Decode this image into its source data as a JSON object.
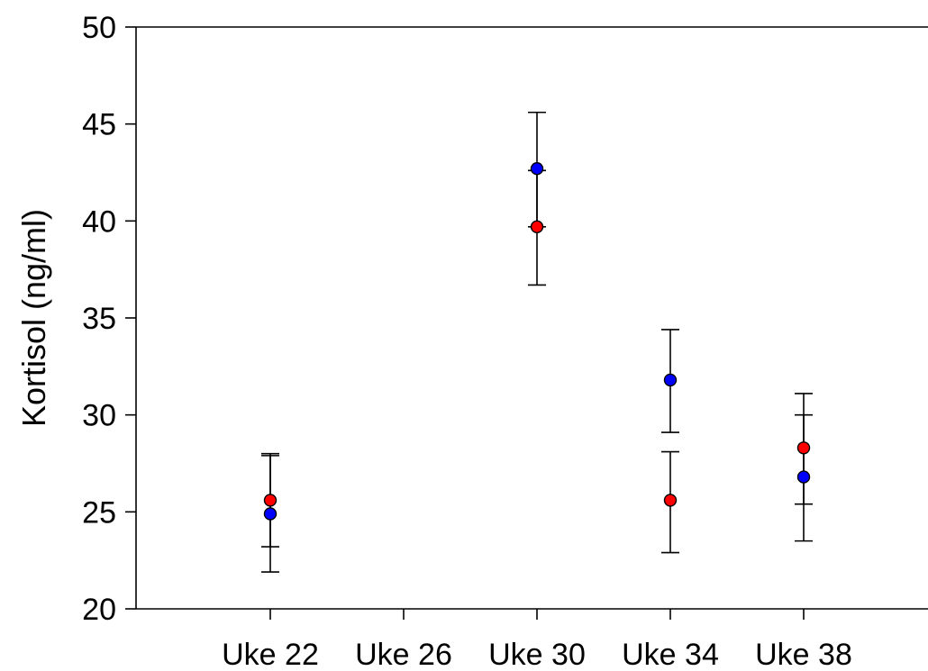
{
  "chart_data": {
    "type": "scatter",
    "title": "",
    "xlabel": "",
    "ylabel": "Kortisol (ng/ml)",
    "ylim": [
      20,
      50
    ],
    "yticks": [
      20,
      25,
      30,
      35,
      40,
      45,
      50
    ],
    "categories": [
      "Uke 22",
      "Uke 26",
      "Uke 30",
      "Uke 34",
      "Uke 38"
    ],
    "grid": false,
    "legend": "none",
    "series": [
      {
        "color": "#ff0000",
        "points": [
          {
            "category": "Uke 22",
            "y": 25.6,
            "err_low": 21.9,
            "err_high": 27.9
          },
          {
            "category": "Uke 30",
            "y": 39.7,
            "err_low": 36.7,
            "err_high": 42.6
          },
          {
            "category": "Uke 34",
            "y": 25.6,
            "err_low": 22.9,
            "err_high": 28.1
          },
          {
            "category": "Uke 38",
            "y": 28.3,
            "err_low": 25.4,
            "err_high": 31.1
          }
        ]
      },
      {
        "color": "#0000ff",
        "points": [
          {
            "category": "Uke 22",
            "y": 24.9,
            "err_low": 23.2,
            "err_high": 28.0
          },
          {
            "category": "Uke 30",
            "y": 42.7,
            "err_low": 39.7,
            "err_high": 45.6
          },
          {
            "category": "Uke 34",
            "y": 31.8,
            "err_low": 29.1,
            "err_high": 34.4
          },
          {
            "category": "Uke 38",
            "y": 26.8,
            "err_low": 23.5,
            "err_high": 30.0
          }
        ]
      }
    ]
  }
}
